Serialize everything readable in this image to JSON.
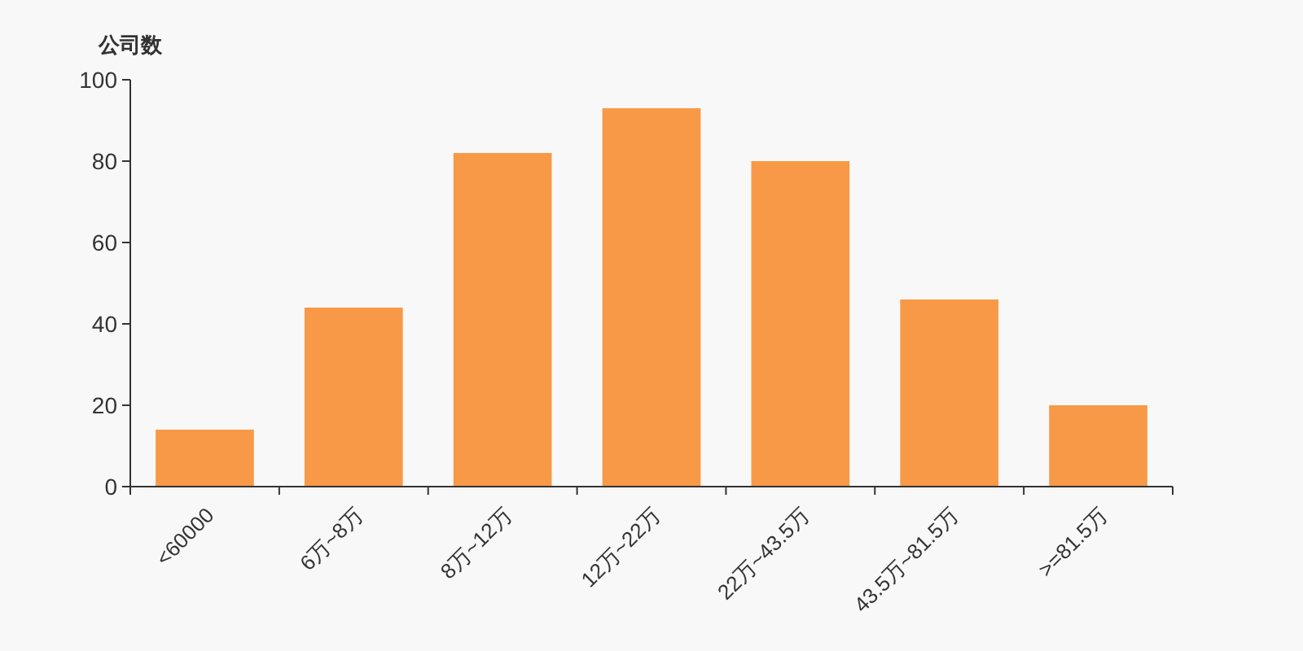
{
  "chart_data": {
    "type": "bar",
    "ylabel": "公司数",
    "categories": [
      "<60000",
      "6万~8万",
      "8万~12万",
      "12万~22万",
      "22万~43.5万",
      "43.5万~81.5万",
      ">=81.5万"
    ],
    "values": [
      14,
      44,
      82,
      93,
      80,
      46,
      20
    ],
    "color": "#f89948",
    "ylim": [
      0,
      100
    ],
    "yticks": [
      0,
      20,
      40,
      60,
      80,
      100
    ],
    "grid": false
  }
}
